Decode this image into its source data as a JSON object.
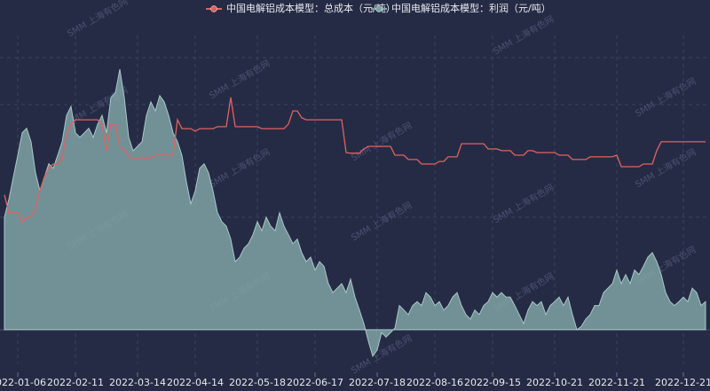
{
  "chart_data": {
    "type": "line",
    "watermark": "SMM 上海有色网",
    "categories": [
      null,
      null,
      null,
      "2022-01-06",
      null,
      null,
      null,
      null,
      null,
      null,
      null,
      null,
      null,
      null,
      null,
      null,
      "2022-02-11",
      null,
      null,
      null,
      null,
      null,
      null,
      null,
      null,
      null,
      null,
      null,
      null,
      null,
      "2022-03-14",
      null,
      null,
      null,
      null,
      null,
      null,
      null,
      null,
      null,
      null,
      null,
      null,
      "2022-04-14",
      null,
      null,
      null,
      null,
      null,
      null,
      null,
      null,
      null,
      null,
      null,
      null,
      null,
      "2022-05-18",
      null,
      null,
      null,
      null,
      null,
      null,
      null,
      null,
      null,
      null,
      null,
      null,
      "2022-06-17",
      null,
      null,
      null,
      null,
      null,
      null,
      null,
      null,
      null,
      null,
      null,
      null,
      null,
      "2022-07-18",
      null,
      null,
      null,
      null,
      null,
      null,
      null,
      null,
      null,
      null,
      null,
      null,
      "2022-08-16",
      null,
      null,
      null,
      null,
      null,
      null,
      null,
      null,
      null,
      null,
      null,
      null,
      "2022-09-15",
      null,
      null,
      null,
      null,
      null,
      null,
      null,
      null,
      null,
      null,
      null,
      null,
      null,
      "2022-10-21",
      null,
      null,
      null,
      null,
      null,
      null,
      null,
      null,
      null,
      null,
      null,
      null,
      null,
      "2022-11-21",
      null,
      null,
      null,
      null,
      null,
      null,
      null,
      null,
      null,
      null,
      null,
      null,
      null,
      null,
      "2022-12-21",
      null,
      null,
      null,
      null,
      null
    ],
    "series": [
      {
        "name": "中国电解铝成本模型：总成本（元/吨）",
        "color": "#e0625f",
        "axis": "y2",
        "values": [
          19140,
          18600,
          18600,
          18600,
          18320,
          18460,
          18460,
          18730,
          19270,
          19680,
          19950,
          20080,
          20080,
          20220,
          21030,
          21300,
          21430,
          21430,
          21430,
          21430,
          21430,
          21430,
          21300,
          20490,
          21300,
          21300,
          20620,
          20490,
          20350,
          20220,
          20270,
          20270,
          20270,
          20270,
          20350,
          20350,
          20350,
          20350,
          20350,
          21430,
          21160,
          21160,
          21160,
          21080,
          21160,
          21160,
          21160,
          21160,
          21220,
          21220,
          21220,
          22110,
          21220,
          21220,
          21220,
          21220,
          21220,
          21220,
          21160,
          21160,
          21160,
          21160,
          21160,
          21160,
          21300,
          21700,
          21700,
          21490,
          21430,
          21430,
          21430,
          21430,
          21430,
          21430,
          21430,
          21430,
          21430,
          20430,
          20410,
          20410,
          20410,
          20540,
          20620,
          20620,
          20620,
          20620,
          20620,
          20620,
          20350,
          20350,
          20350,
          20220,
          20220,
          20220,
          20080,
          20080,
          20080,
          20080,
          20160,
          20160,
          20300,
          20300,
          20300,
          20700,
          20700,
          20700,
          20700,
          20700,
          20700,
          20540,
          20540,
          20540,
          20490,
          20490,
          20490,
          20350,
          20350,
          20350,
          20490,
          20490,
          20430,
          20430,
          20430,
          20430,
          20430,
          20350,
          20350,
          20350,
          20220,
          20220,
          20220,
          20220,
          20300,
          20300,
          20300,
          20300,
          20300,
          20300,
          20350,
          20000,
          20000,
          20000,
          20000,
          20000,
          20080,
          20080,
          20080,
          20490,
          20760,
          20760,
          20760,
          20760,
          20760,
          20760,
          20760,
          20760,
          20760,
          20760,
          20760
        ]
      },
      {
        "name": "中国电解铝成本模型：利润（元/吨）",
        "color": "#7fa3a6",
        "values": [
          2000,
          2320,
          2710,
          3100,
          3500,
          3580,
          3340,
          2790,
          2470,
          2710,
          2950,
          2870,
          3100,
          3340,
          3810,
          3970,
          3500,
          3420,
          3500,
          3580,
          3420,
          3650,
          3810,
          3500,
          4130,
          4210,
          4630,
          4130,
          3420,
          3180,
          3260,
          3340,
          3810,
          4050,
          3890,
          4160,
          4050,
          3810,
          3500,
          3340,
          3100,
          2630,
          2240,
          2470,
          2870,
          2950,
          2790,
          2470,
          2080,
          1920,
          1840,
          1610,
          1210,
          1290,
          1450,
          1530,
          1690,
          1920,
          1760,
          2000,
          1840,
          1760,
          2080,
          1840,
          1690,
          1530,
          1610,
          1370,
          1210,
          1290,
          1060,
          1210,
          1130,
          820,
          660,
          740,
          820,
          660,
          900,
          580,
          350,
          110,
          -200,
          -470,
          -360,
          -50,
          -130,
          -50,
          30,
          430,
          350,
          270,
          430,
          500,
          430,
          660,
          580,
          430,
          500,
          350,
          430,
          580,
          660,
          430,
          270,
          190,
          350,
          270,
          430,
          500,
          660,
          580,
          660,
          580,
          580,
          430,
          270,
          110,
          350,
          500,
          430,
          500,
          270,
          430,
          500,
          580,
          430,
          580,
          270,
          0,
          60,
          190,
          270,
          430,
          430,
          660,
          740,
          820,
          1060,
          820,
          980,
          820,
          1060,
          980,
          1130,
          1290,
          1370,
          1210,
          980,
          660,
          500,
          430,
          500,
          580,
          500,
          740,
          660,
          430,
          500
        ]
      }
    ],
    "ylim": [
      -600,
      5230
    ],
    "y2lim": [
      14000,
      24000
    ]
  }
}
